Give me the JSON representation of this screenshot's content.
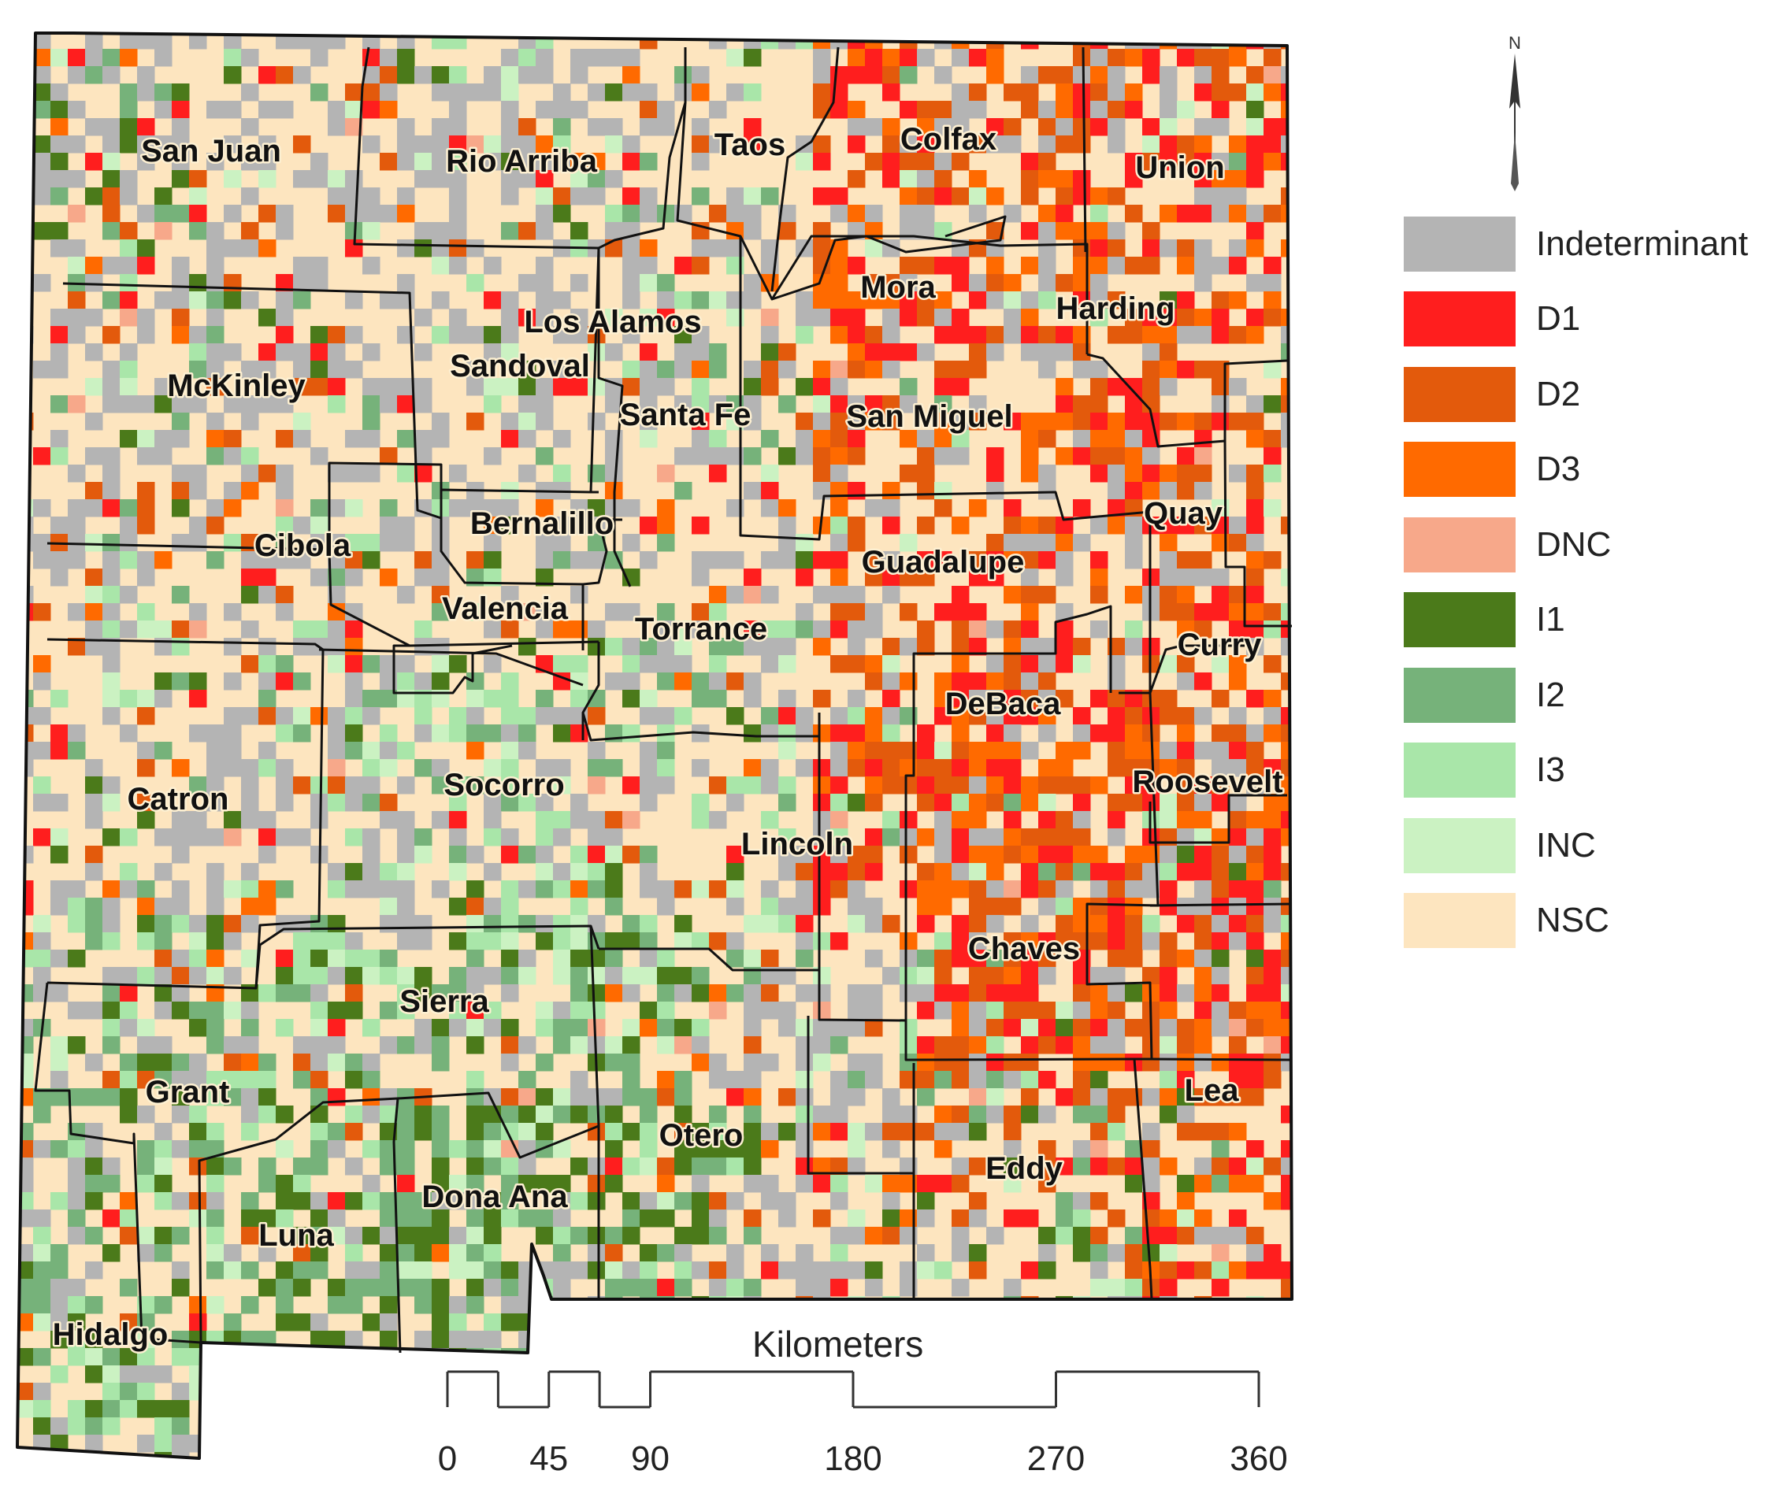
{
  "counties": [
    {
      "name": "San Juan"
    },
    {
      "name": "Rio Arriba"
    },
    {
      "name": "Taos"
    },
    {
      "name": "Colfax"
    },
    {
      "name": "Union"
    },
    {
      "name": "Mora"
    },
    {
      "name": "Harding"
    },
    {
      "name": "Los Alamos"
    },
    {
      "name": "McKinley"
    },
    {
      "name": "Sandoval"
    },
    {
      "name": "Santa Fe"
    },
    {
      "name": "San Miguel"
    },
    {
      "name": "Quay"
    },
    {
      "name": "Bernalillo"
    },
    {
      "name": "Cibola"
    },
    {
      "name": "Guadalupe"
    },
    {
      "name": "Valencia"
    },
    {
      "name": "Torrance"
    },
    {
      "name": "Curry"
    },
    {
      "name": "DeBaca"
    },
    {
      "name": "Catron"
    },
    {
      "name": "Socorro"
    },
    {
      "name": "Roosevelt"
    },
    {
      "name": "Lincoln"
    },
    {
      "name": "Chaves"
    },
    {
      "name": "Sierra"
    },
    {
      "name": "Grant"
    },
    {
      "name": "Lea"
    },
    {
      "name": "Otero"
    },
    {
      "name": "Eddy"
    },
    {
      "name": "Dona Ana"
    },
    {
      "name": "Luna"
    },
    {
      "name": "Hidalgo"
    }
  ],
  "legend": [
    {
      "label": "Indeterminant",
      "color": "#b4b4b4"
    },
    {
      "label": "D1",
      "color": "#ff1e1e"
    },
    {
      "label": "D2",
      "color": "#e35a0c"
    },
    {
      "label": "D3",
      "color": "#ff6a00"
    },
    {
      "label": "DNC",
      "color": "#f7a88a"
    },
    {
      "label": "I1",
      "color": "#4b7a1a"
    },
    {
      "label": "I2",
      "color": "#76b27a"
    },
    {
      "label": "I3",
      "color": "#a9e6a9"
    },
    {
      "label": "INC",
      "color": "#cbf2c2"
    },
    {
      "label": "NSC",
      "color": "#fde5bf"
    }
  ],
  "north_arrow": {
    "letter": "N",
    "icon": "north-arrow-icon"
  },
  "scale_bar": {
    "title": "Kilometers",
    "ticks": [
      "0",
      "45",
      "90",
      "180",
      "270",
      "360"
    ],
    "tick_km": [
      0,
      45,
      90,
      180,
      270,
      360
    ]
  }
}
